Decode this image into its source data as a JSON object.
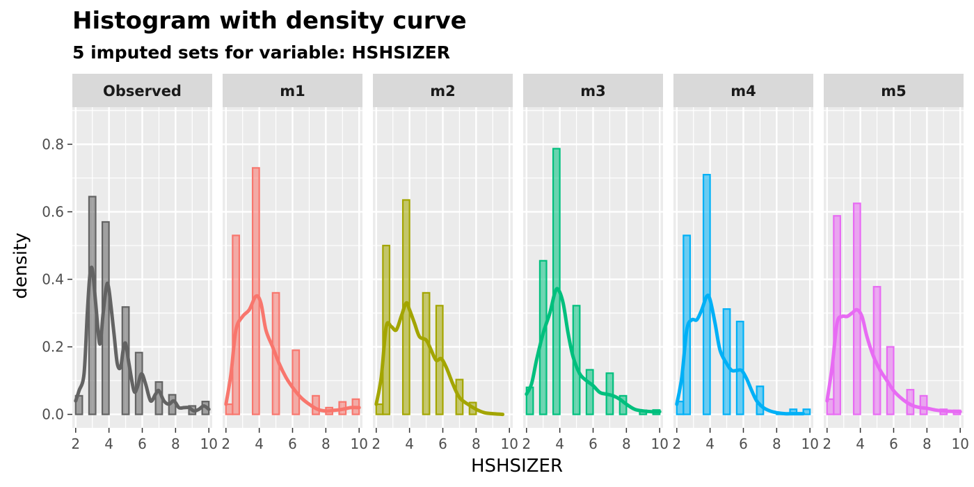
{
  "title": "Histogram with density curve",
  "subtitle": "5  imputed sets for variable:  HSHSIZER",
  "chart_data": {
    "type": "bar",
    "xlabel": "HSHSIZER",
    "ylabel": "density",
    "xlim": [
      1.8,
      10.2
    ],
    "ylim": [
      -0.04,
      0.91
    ],
    "x_ticks": [
      2,
      4,
      6,
      8,
      10
    ],
    "y_ticks": [
      0.0,
      0.2,
      0.4,
      0.6,
      0.8
    ],
    "y_tick_labels": [
      "0.0",
      "0.2",
      "0.4",
      "0.6",
      "0.8"
    ],
    "grid": true,
    "bin_width": 0.4,
    "bin_centers": [
      2.2,
      2.6,
      3.0,
      3.4,
      3.8,
      4.2,
      4.6,
      5.0,
      5.4,
      5.8,
      6.2,
      6.6,
      7.0,
      7.4,
      7.8,
      8.2,
      8.6,
      9.0,
      9.4,
      9.8
    ],
    "panels": [
      {
        "name": "Observed",
        "color": "#636363",
        "bars": [
          0.055,
          0,
          0.645,
          0,
          0.57,
          0,
          0,
          0.318,
          0,
          0.183,
          0,
          0,
          0.096,
          0,
          0.058,
          0,
          0,
          0.025,
          0,
          0.038
        ],
        "density": [
          [
            2.0,
            0.04
          ],
          [
            2.2,
            0.07
          ],
          [
            2.5,
            0.12
          ],
          [
            2.7,
            0.3
          ],
          [
            2.85,
            0.41
          ],
          [
            3.0,
            0.43
          ],
          [
            3.2,
            0.33
          ],
          [
            3.4,
            0.22
          ],
          [
            3.5,
            0.22
          ],
          [
            3.65,
            0.3
          ],
          [
            3.85,
            0.38
          ],
          [
            4.0,
            0.37
          ],
          [
            4.3,
            0.24
          ],
          [
            4.5,
            0.15
          ],
          [
            4.7,
            0.14
          ],
          [
            4.85,
            0.19
          ],
          [
            5.0,
            0.21
          ],
          [
            5.2,
            0.15
          ],
          [
            5.5,
            0.07
          ],
          [
            5.7,
            0.08
          ],
          [
            5.95,
            0.12
          ],
          [
            6.2,
            0.09
          ],
          [
            6.5,
            0.04
          ],
          [
            6.8,
            0.06
          ],
          [
            7.0,
            0.07
          ],
          [
            7.3,
            0.04
          ],
          [
            7.6,
            0.03
          ],
          [
            7.9,
            0.04
          ],
          [
            8.2,
            0.02
          ],
          [
            8.5,
            0.02
          ],
          [
            8.8,
            0.02
          ],
          [
            9.1,
            0.01
          ],
          [
            9.4,
            0.015
          ],
          [
            9.7,
            0.025
          ],
          [
            10.0,
            0.015
          ]
        ]
      },
      {
        "name": "m1",
        "color": "#F8766D",
        "bars": [
          0.03,
          0.53,
          0,
          0,
          0.73,
          0,
          0,
          0.36,
          0,
          0,
          0.19,
          0,
          0,
          0.055,
          0,
          0.02,
          0,
          0.037,
          0,
          0.045
        ],
        "density": [
          [
            2.0,
            0.03
          ],
          [
            2.3,
            0.12
          ],
          [
            2.6,
            0.25
          ],
          [
            3.0,
            0.29
          ],
          [
            3.4,
            0.31
          ],
          [
            3.8,
            0.35
          ],
          [
            4.1,
            0.33
          ],
          [
            4.4,
            0.25
          ],
          [
            4.8,
            0.2
          ],
          [
            5.2,
            0.15
          ],
          [
            5.6,
            0.11
          ],
          [
            6.0,
            0.08
          ],
          [
            6.5,
            0.05
          ],
          [
            7.0,
            0.03
          ],
          [
            7.5,
            0.015
          ],
          [
            8.0,
            0.01
          ],
          [
            8.5,
            0.012
          ],
          [
            9.0,
            0.015
          ],
          [
            9.5,
            0.02
          ],
          [
            10.0,
            0.02
          ]
        ]
      },
      {
        "name": "m2",
        "color": "#A3A500",
        "bars": [
          0.03,
          0.5,
          0,
          0,
          0.635,
          0,
          0,
          0.36,
          0,
          0.322,
          0,
          0,
          0.103,
          0,
          0.035,
          0,
          0,
          0,
          0,
          0
        ],
        "density": [
          [
            2.0,
            0.03
          ],
          [
            2.3,
            0.11
          ],
          [
            2.6,
            0.26
          ],
          [
            2.9,
            0.26
          ],
          [
            3.2,
            0.25
          ],
          [
            3.5,
            0.29
          ],
          [
            3.8,
            0.33
          ],
          [
            4.0,
            0.31
          ],
          [
            4.3,
            0.27
          ],
          [
            4.6,
            0.23
          ],
          [
            5.0,
            0.22
          ],
          [
            5.3,
            0.19
          ],
          [
            5.6,
            0.16
          ],
          [
            5.9,
            0.165
          ],
          [
            6.2,
            0.14
          ],
          [
            6.6,
            0.09
          ],
          [
            7.0,
            0.05
          ],
          [
            7.5,
            0.03
          ],
          [
            8.0,
            0.015
          ],
          [
            8.5,
            0.005
          ],
          [
            9.0,
            0.002
          ],
          [
            9.6,
            0.0
          ]
        ]
      },
      {
        "name": "m3",
        "color": "#00BF7D",
        "bars": [
          0.08,
          0,
          0.455,
          0,
          0.787,
          0,
          0,
          0.322,
          0,
          0.132,
          0,
          0,
          0.122,
          0,
          0.055,
          0,
          0,
          0.012,
          0,
          0.013
        ],
        "density": [
          [
            2.0,
            0.06
          ],
          [
            2.3,
            0.09
          ],
          [
            2.6,
            0.16
          ],
          [
            3.0,
            0.24
          ],
          [
            3.4,
            0.3
          ],
          [
            3.7,
            0.36
          ],
          [
            3.9,
            0.37
          ],
          [
            4.2,
            0.33
          ],
          [
            4.5,
            0.24
          ],
          [
            4.8,
            0.17
          ],
          [
            5.2,
            0.12
          ],
          [
            5.6,
            0.1
          ],
          [
            6.0,
            0.085
          ],
          [
            6.4,
            0.065
          ],
          [
            6.8,
            0.06
          ],
          [
            7.2,
            0.055
          ],
          [
            7.6,
            0.045
          ],
          [
            8.0,
            0.03
          ],
          [
            8.5,
            0.015
          ],
          [
            9.0,
            0.01
          ],
          [
            9.5,
            0.008
          ],
          [
            10.0,
            0.008
          ]
        ]
      },
      {
        "name": "m4",
        "color": "#00B0F6",
        "bars": [
          0.038,
          0.53,
          0,
          0,
          0.71,
          0,
          0,
          0.312,
          0,
          0.275,
          0,
          0,
          0.083,
          0,
          0,
          0.005,
          0,
          0.015,
          0,
          0.015
        ],
        "density": [
          [
            2.0,
            0.03
          ],
          [
            2.3,
            0.11
          ],
          [
            2.6,
            0.25
          ],
          [
            2.9,
            0.28
          ],
          [
            3.2,
            0.28
          ],
          [
            3.5,
            0.31
          ],
          [
            3.8,
            0.35
          ],
          [
            4.0,
            0.34
          ],
          [
            4.3,
            0.27
          ],
          [
            4.6,
            0.19
          ],
          [
            5.0,
            0.15
          ],
          [
            5.3,
            0.13
          ],
          [
            5.6,
            0.13
          ],
          [
            5.9,
            0.13
          ],
          [
            6.2,
            0.105
          ],
          [
            6.5,
            0.07
          ],
          [
            6.8,
            0.04
          ],
          [
            7.2,
            0.02
          ],
          [
            7.6,
            0.01
          ],
          [
            8.0,
            0.005
          ],
          [
            8.5,
            0.002
          ],
          [
            9.0,
            0.002
          ],
          [
            9.6,
            0.002
          ]
        ]
      },
      {
        "name": "m5",
        "color": "#E76BF3",
        "bars": [
          0.045,
          0.588,
          0,
          0,
          0.625,
          0,
          0,
          0.378,
          0,
          0.2,
          0,
          0,
          0.073,
          0,
          0.055,
          0,
          0,
          0.015,
          0,
          0.012
        ],
        "density": [
          [
            2.0,
            0.04
          ],
          [
            2.3,
            0.14
          ],
          [
            2.6,
            0.27
          ],
          [
            2.9,
            0.29
          ],
          [
            3.2,
            0.29
          ],
          [
            3.5,
            0.3
          ],
          [
            3.8,
            0.31
          ],
          [
            4.1,
            0.29
          ],
          [
            4.4,
            0.23
          ],
          [
            4.8,
            0.17
          ],
          [
            5.2,
            0.13
          ],
          [
            5.6,
            0.1
          ],
          [
            6.0,
            0.07
          ],
          [
            6.4,
            0.05
          ],
          [
            6.8,
            0.035
          ],
          [
            7.2,
            0.025
          ],
          [
            7.6,
            0.02
          ],
          [
            8.0,
            0.018
          ],
          [
            8.5,
            0.013
          ],
          [
            9.0,
            0.01
          ],
          [
            9.5,
            0.009
          ],
          [
            10.0,
            0.008
          ]
        ]
      }
    ]
  }
}
